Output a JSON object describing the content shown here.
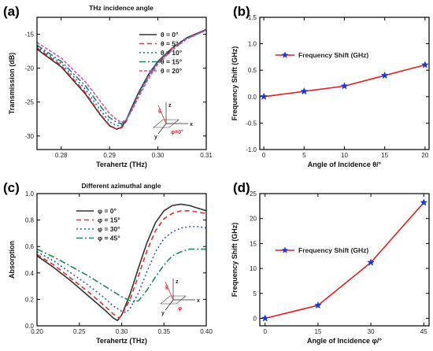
{
  "chart_data": [
    {
      "panel": "(a)",
      "type": "line",
      "title": "THz incidence angle",
      "xlabel": "Terahertz (THz)",
      "ylabel": "Transmission (dB)",
      "xlim": [
        0.275,
        0.31
      ],
      "ylim": [
        -32,
        -12.5
      ],
      "xticks": [
        0.28,
        0.29,
        0.3,
        0.31
      ],
      "xtick_labels": [
        "0.28",
        "0.29",
        "0.30",
        "0.31"
      ],
      "yticks": [
        -30,
        -25,
        -20,
        -15
      ],
      "ytick_labels": [
        "-30",
        "-25",
        "-20",
        "-15"
      ],
      "legend_position": "top-right",
      "series": [
        {
          "name": "θ = 0°",
          "color": "#333333",
          "dash": "solid",
          "x": [
            0.275,
            0.28,
            0.285,
            0.288,
            0.29,
            0.2915,
            0.2925,
            0.2935,
            0.2945,
            0.296,
            0.298,
            0.3,
            0.303,
            0.306,
            0.31
          ],
          "y": [
            -17.2,
            -19.8,
            -23.8,
            -26.8,
            -28.5,
            -29.0,
            -28.7,
            -27.6,
            -25.9,
            -23.6,
            -21.0,
            -19.0,
            -17.0,
            -15.5,
            -14.3
          ]
        },
        {
          "name": "θ = 5°",
          "color": "#e03030",
          "dash": "6,4",
          "x": [
            0.275,
            0.28,
            0.285,
            0.288,
            0.29,
            0.2915,
            0.2925,
            0.2935,
            0.2945,
            0.296,
            0.298,
            0.3,
            0.303,
            0.306,
            0.31
          ],
          "y": [
            -17.0,
            -19.6,
            -23.6,
            -26.7,
            -28.4,
            -29.0,
            -28.8,
            -27.8,
            -26.1,
            -23.8,
            -21.1,
            -19.1,
            -17.0,
            -15.5,
            -14.3
          ]
        },
        {
          "name": "θ = 10°",
          "color": "#2b5fb3",
          "dash": "2,3",
          "x": [
            0.275,
            0.28,
            0.285,
            0.288,
            0.29,
            0.2915,
            0.2925,
            0.2935,
            0.2945,
            0.296,
            0.298,
            0.3,
            0.303,
            0.306,
            0.31
          ],
          "y": [
            -16.8,
            -19.3,
            -23.1,
            -26.1,
            -27.9,
            -28.5,
            -28.4,
            -27.5,
            -25.9,
            -23.7,
            -21.1,
            -19.1,
            -17.1,
            -15.5,
            -14.3
          ]
        },
        {
          "name": "θ = 15°",
          "color": "#1a8a5a",
          "dash": "8,3,2,3",
          "x": [
            0.275,
            0.28,
            0.285,
            0.288,
            0.29,
            0.2915,
            0.2925,
            0.2935,
            0.2945,
            0.296,
            0.298,
            0.3,
            0.303,
            0.306,
            0.31
          ],
          "y": [
            -16.6,
            -19.0,
            -22.6,
            -25.5,
            -27.3,
            -28.0,
            -28.2,
            -27.6,
            -26.2,
            -24.0,
            -21.3,
            -19.2,
            -17.2,
            -15.6,
            -14.4
          ]
        },
        {
          "name": "θ = 20°",
          "color": "#d050c0",
          "dash": "4,2",
          "x": [
            0.275,
            0.28,
            0.285,
            0.288,
            0.29,
            0.2915,
            0.2925,
            0.2935,
            0.2945,
            0.296,
            0.298,
            0.3,
            0.303,
            0.306,
            0.31
          ],
          "y": [
            -16.2,
            -18.5,
            -22.0,
            -24.8,
            -26.7,
            -27.6,
            -28.0,
            -27.6,
            -26.4,
            -24.3,
            -21.6,
            -19.4,
            -17.3,
            -15.7,
            -14.4
          ]
        }
      ],
      "inset": {
        "labels": [
          "z",
          "x",
          "y"
        ],
        "angle_label": "θ",
        "azimuth_label": "φ=0°"
      }
    },
    {
      "panel": "(b)",
      "type": "line",
      "title": "",
      "xlabel": "Angle of Incidence θ/°",
      "ylabel": "Frequency Shift (GHz)",
      "xlim": [
        -0.5,
        20.5
      ],
      "ylim": [
        -1.0,
        1.5
      ],
      "xticks": [
        0,
        5,
        10,
        15,
        20
      ],
      "xtick_labels": [
        "0",
        "5",
        "10",
        "15",
        "20"
      ],
      "yticks": [
        -1.0,
        -0.5,
        0.0,
        0.5,
        1.0,
        1.5
      ],
      "ytick_labels": [
        "-1.0",
        "-0.5",
        "0.0",
        "0.5",
        "1.0",
        "1.5"
      ],
      "legend_position": "top-left",
      "series": [
        {
          "name": "Frequency Shift (GHz)",
          "color": "#e02020",
          "marker_color": "#1a3ad8",
          "marker": "star",
          "x": [
            0,
            5,
            10,
            15,
            20
          ],
          "y": [
            0.0,
            0.1,
            0.2,
            0.4,
            0.6
          ]
        }
      ]
    },
    {
      "panel": "(c)",
      "type": "line",
      "title": "Different azimuthal angle",
      "xlabel": "Terahertz (THz)",
      "ylabel": "Absorption",
      "xlim": [
        0.2,
        0.4
      ],
      "ylim": [
        0.0,
        1.0
      ],
      "xticks": [
        0.2,
        0.25,
        0.3,
        0.35,
        0.4
      ],
      "xtick_labels": [
        "0.20",
        "0.25",
        "0.30",
        "0.35",
        "0.40"
      ],
      "yticks": [
        0.0,
        0.2,
        0.4,
        0.6,
        0.8,
        1.0
      ],
      "ytick_labels": [
        "0.0",
        "0.2",
        "0.4",
        "0.6",
        "0.8",
        "1.0"
      ],
      "legend_position": "top-center",
      "series": [
        {
          "name": "φ = 0°",
          "color": "#333333",
          "dash": "solid",
          "x": [
            0.2,
            0.22,
            0.24,
            0.26,
            0.28,
            0.29,
            0.295,
            0.3,
            0.31,
            0.32,
            0.33,
            0.34,
            0.35,
            0.36,
            0.37,
            0.38,
            0.39,
            0.4
          ],
          "y": [
            0.53,
            0.44,
            0.34,
            0.23,
            0.12,
            0.06,
            0.04,
            0.08,
            0.24,
            0.44,
            0.63,
            0.78,
            0.87,
            0.91,
            0.92,
            0.91,
            0.89,
            0.87
          ]
        },
        {
          "name": "φ = 15°",
          "color": "#e03030",
          "dash": "6,4",
          "x": [
            0.2,
            0.22,
            0.24,
            0.26,
            0.28,
            0.29,
            0.297,
            0.3,
            0.31,
            0.32,
            0.33,
            0.34,
            0.35,
            0.36,
            0.37,
            0.38,
            0.39,
            0.4
          ],
          "y": [
            0.54,
            0.46,
            0.36,
            0.26,
            0.15,
            0.09,
            0.06,
            0.08,
            0.2,
            0.38,
            0.57,
            0.72,
            0.81,
            0.85,
            0.87,
            0.87,
            0.86,
            0.85
          ]
        },
        {
          "name": "φ = 30°",
          "color": "#2b5fb3",
          "dash": "2,3",
          "x": [
            0.2,
            0.22,
            0.24,
            0.26,
            0.28,
            0.29,
            0.3,
            0.305,
            0.31,
            0.32,
            0.33,
            0.34,
            0.35,
            0.36,
            0.37,
            0.38,
            0.39,
            0.4
          ],
          "y": [
            0.56,
            0.49,
            0.4,
            0.31,
            0.21,
            0.15,
            0.11,
            0.1,
            0.13,
            0.25,
            0.41,
            0.56,
            0.66,
            0.71,
            0.74,
            0.75,
            0.75,
            0.74
          ]
        },
        {
          "name": "φ = 45°",
          "color": "#1a8a5a",
          "dash": "8,3,2,3",
          "x": [
            0.2,
            0.22,
            0.24,
            0.26,
            0.28,
            0.3,
            0.31,
            0.315,
            0.32,
            0.33,
            0.34,
            0.35,
            0.36,
            0.37,
            0.38,
            0.39,
            0.4
          ],
          "y": [
            0.58,
            0.52,
            0.45,
            0.38,
            0.3,
            0.22,
            0.19,
            0.18,
            0.19,
            0.27,
            0.37,
            0.46,
            0.53,
            0.56,
            0.58,
            0.58,
            0.58
          ]
        }
      ],
      "inset": {
        "labels": [
          "z",
          "x",
          "y"
        ],
        "angle_label": "θ",
        "azimuth_label": "φ"
      }
    },
    {
      "panel": "(d)",
      "type": "line",
      "title": "",
      "xlabel": "Angle of Incidence φ/°",
      "ylabel": "Frequency Shift (GHz)",
      "xlim": [
        -1.5,
        46.5
      ],
      "ylim": [
        -1.5,
        25
      ],
      "xticks": [
        0,
        15,
        30,
        45
      ],
      "xtick_labels": [
        "0",
        "15",
        "30",
        "45"
      ],
      "yticks": [
        0,
        5,
        10,
        15,
        20,
        25
      ],
      "ytick_labels": [
        "0",
        "5",
        "10",
        "15",
        "20",
        "25"
      ],
      "legend_position": "top-left",
      "series": [
        {
          "name": "Frequency Shift (GHz)",
          "color": "#e02020",
          "marker_color": "#1a3ad8",
          "marker": "star",
          "x": [
            0,
            15,
            30,
            45
          ],
          "y": [
            0.0,
            2.6,
            11.2,
            23.2
          ]
        }
      ]
    }
  ]
}
